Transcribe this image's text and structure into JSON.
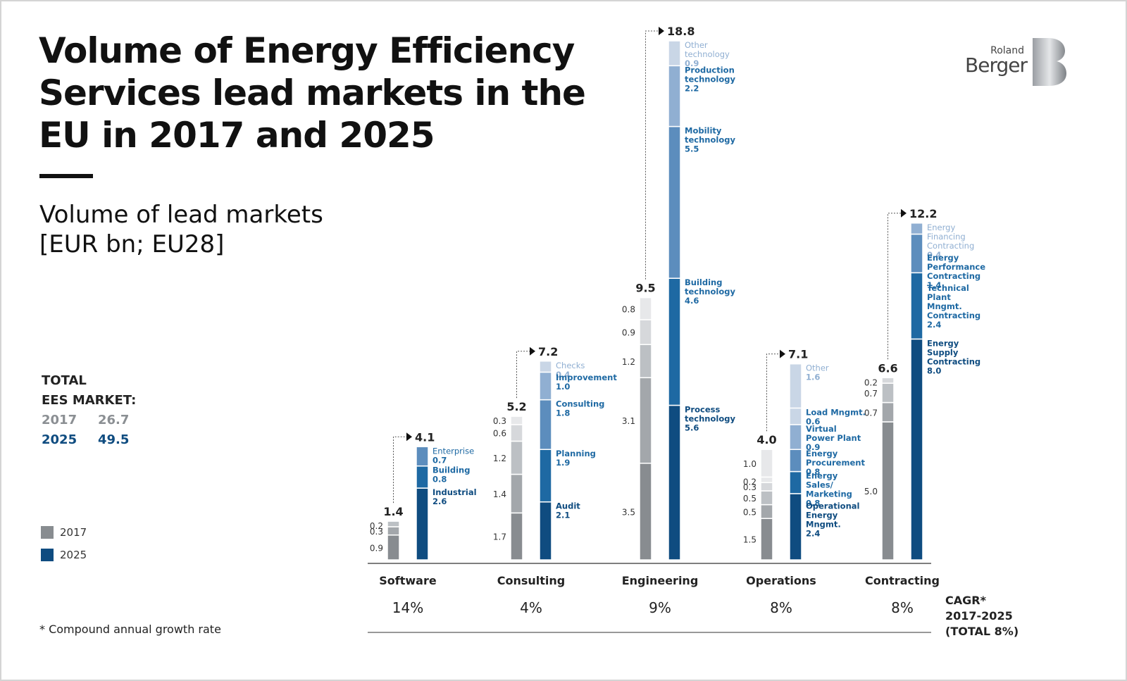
{
  "title_lines": [
    "Volume of Energy Efficiency",
    "Services lead markets in the",
    "EU in 2017 and 2025"
  ],
  "subtitle_lines": [
    "Volume of lead markets",
    "[EUR bn; EU28]"
  ],
  "total": {
    "line1": "TOTAL",
    "line2": "EES MARKET:",
    "rows": [
      {
        "year": "2017",
        "value": "26.7"
      },
      {
        "year": "2025",
        "value": "49.5"
      }
    ]
  },
  "legend": [
    {
      "label": "2017",
      "color": "#888c90"
    },
    {
      "label": "2025",
      "color": "#0f4c80"
    }
  ],
  "footnote": "* Compound annual growth rate",
  "logo": {
    "line1": "Roland",
    "line2": "Berger"
  },
  "cagr_label": [
    "CAGR*",
    "2017-2025",
    "(TOTAL 8%)"
  ],
  "colors": {
    "grey_2017": [
      "#888c90",
      "#a3a7ab",
      "#bcc0c4",
      "#d6d8db",
      "#e7e8ea"
    ],
    "blue_2025": [
      "#0f4c80",
      "#1e69a3",
      "#5c8dbd",
      "#90afd2",
      "#c9d6e6"
    ]
  },
  "chart_data": {
    "type": "bar",
    "stacked": true,
    "unit": "EUR bn",
    "categories": [
      "Software",
      "Consulting",
      "Engineering",
      "Operations",
      "Contracting"
    ],
    "cagr": [
      "14%",
      "4%",
      "9%",
      "8%",
      "8%"
    ],
    "totals_2017": [
      "1.4",
      "5.2",
      "9.5",
      "4.0",
      "6.6"
    ],
    "totals_2025": [
      "4.1",
      "7.2",
      "18.8",
      "7.1",
      "12.2"
    ],
    "segments_2017": [
      [
        {
          "value": 0.9,
          "label": "0.9"
        },
        {
          "value": 0.3,
          "label": "0.3"
        },
        {
          "value": 0.2,
          "label": "0.2"
        }
      ],
      [
        {
          "value": 1.7,
          "label": "1.7"
        },
        {
          "value": 1.4,
          "label": "1.4"
        },
        {
          "value": 1.2,
          "label": "1.2"
        },
        {
          "value": 0.6,
          "label": "0.6"
        },
        {
          "value": 0.3,
          "label": "0.3"
        }
      ],
      [
        {
          "value": 3.5,
          "label": "3.5"
        },
        {
          "value": 3.1,
          "label": "3.1"
        },
        {
          "value": 1.2,
          "label": "1.2"
        },
        {
          "value": 0.9,
          "label": "0.9"
        },
        {
          "value": 0.8,
          "label": "0.8"
        }
      ],
      [
        {
          "value": 1.5,
          "label": "1.5"
        },
        {
          "value": 0.5,
          "label": "0.5"
        },
        {
          "value": 0.5,
          "label": "0.5"
        },
        {
          "value": 0.3,
          "label": "0.3"
        },
        {
          "value": 0.2,
          "label": "0.2"
        },
        {
          "value": 1.0,
          "label": "1.0"
        }
      ],
      [
        {
          "value": 5.0,
          "label": "5.0"
        },
        {
          "value": 0.7,
          "label": "0.7"
        },
        {
          "value": 0.7,
          "label": "0.7"
        },
        {
          "value": 0.2,
          "label": "0.2"
        }
      ]
    ],
    "segments_2025": [
      [
        {
          "value": 2.6,
          "name": "Industrial",
          "label": "2.6"
        },
        {
          "value": 0.8,
          "name": "Building",
          "label": "0.8"
        },
        {
          "value": 0.7,
          "name": "Enterprise",
          "label": "0.7"
        }
      ],
      [
        {
          "value": 2.1,
          "name": "Audit",
          "label": "2.1"
        },
        {
          "value": 1.9,
          "name": "Planning",
          "label": "1.9"
        },
        {
          "value": 1.8,
          "name": "Consulting",
          "label": "1.8"
        },
        {
          "value": 1.0,
          "name": "Improvement",
          "label": "1.0"
        },
        {
          "value": 0.4,
          "name": "Checks",
          "label": "0,4"
        }
      ],
      [
        {
          "value": 5.6,
          "name": "Process technology",
          "label": "5.6"
        },
        {
          "value": 4.6,
          "name": "Building technology",
          "label": "4.6"
        },
        {
          "value": 5.5,
          "name": "Mobility technology",
          "label": "5.5"
        },
        {
          "value": 2.2,
          "name": "Production technology",
          "label": "2.2"
        },
        {
          "value": 0.9,
          "name": "Other technology",
          "label": "0.9"
        }
      ],
      [
        {
          "value": 2.4,
          "name": "Operational Energy Mngmt.",
          "label": "2.4"
        },
        {
          "value": 0.8,
          "name": "Energy Sales/ Marketing",
          "label": "0.8"
        },
        {
          "value": 0.8,
          "name": "Energy Procurement",
          "label": "0.8"
        },
        {
          "value": 0.9,
          "name": "Virtual Power Plant",
          "label": "0.9"
        },
        {
          "value": 0.6,
          "name": "Load Mngmt.",
          "label": "0.6"
        },
        {
          "value": 1.6,
          "name": "Other",
          "label": "1.6"
        }
      ],
      [
        {
          "value": 8.0,
          "name": "Energy Supply Contracting",
          "label": "8.0"
        },
        {
          "value": 2.4,
          "name": "Technical Plant Mngmt. Contracting",
          "label": "2.4"
        },
        {
          "value": 1.4,
          "name": "Energy Performance Contracting",
          "label": "1.4"
        },
        {
          "value": 0.4,
          "name": "Energy Financing Contracting",
          "label": "0.4"
        }
      ]
    ]
  }
}
